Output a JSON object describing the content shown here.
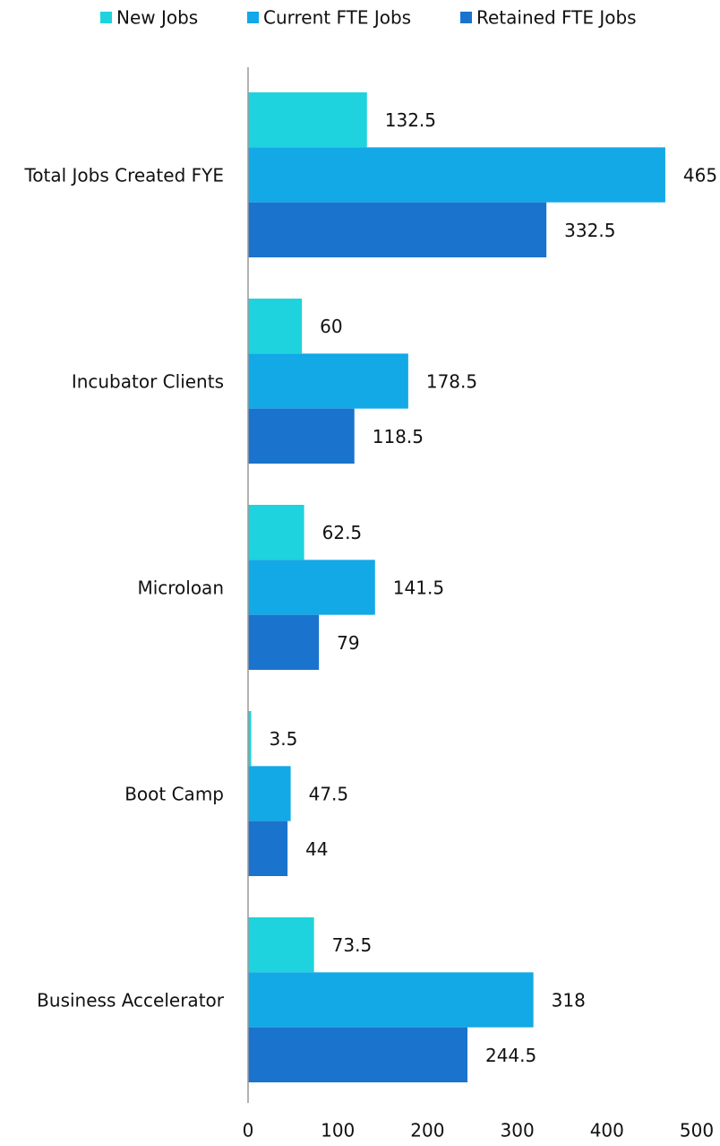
{
  "chart_data": {
    "type": "barh",
    "categories": [
      "Total Jobs Created FYE",
      "Incubator Clients",
      "Microloan",
      "Boot Camp",
      "Business Accelerator"
    ],
    "series": [
      {
        "name": "New Jobs",
        "color": "#1ed3dd",
        "values": [
          132.5,
          60,
          62.5,
          3.5,
          73.5
        ]
      },
      {
        "name": "Current FTE Jobs",
        "color": "#13a8e6",
        "values": [
          465,
          178.5,
          141.5,
          47.5,
          318
        ]
      },
      {
        "name": "Retained FTE Jobs",
        "color": "#1a73cc",
        "values": [
          332.5,
          118.5,
          79,
          44,
          244.5
        ]
      }
    ],
    "xlim": [
      0,
      500
    ],
    "xticks": [
      0,
      100,
      200,
      300,
      400,
      500
    ],
    "legend": "top",
    "grid": false
  }
}
